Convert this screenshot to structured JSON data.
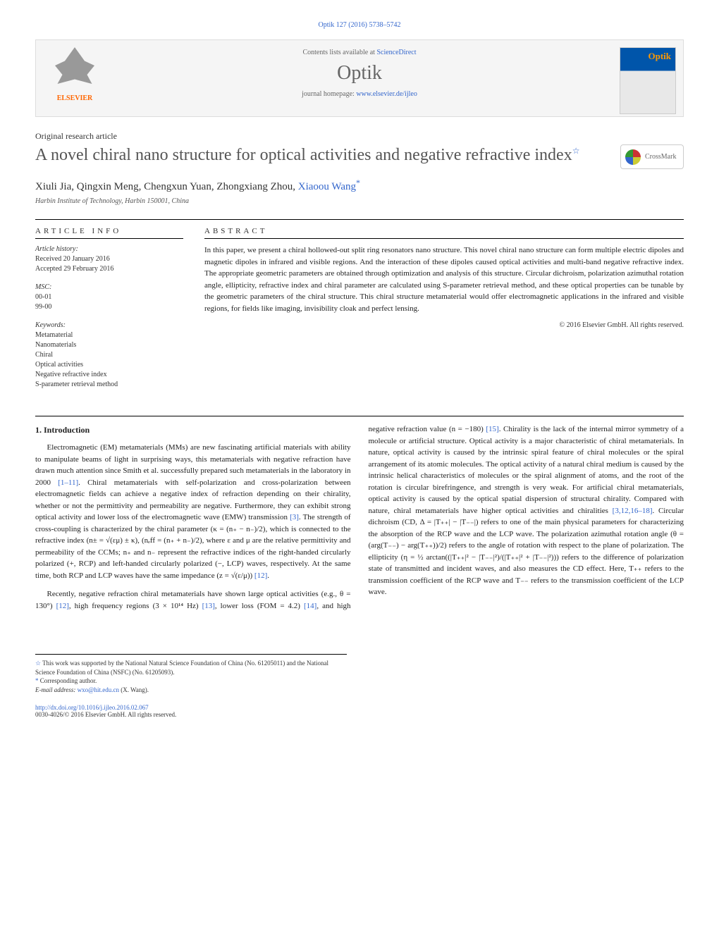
{
  "top_link": "Optik 127 (2016) 5738–5742",
  "header": {
    "contents_prefix": "Contents lists available at ",
    "contents_link": "ScienceDirect",
    "journal_name": "Optik",
    "homepage_prefix": "journal homepage: ",
    "homepage_url": "www.elsevier.de/ijleo",
    "elsevier_label": "ELSEVIER",
    "cover_title": "Optik"
  },
  "article": {
    "type": "Original research article",
    "title": "A novel chiral nano structure for optical activities and negative refractive index",
    "title_star": "☆",
    "crossmark": "CrossMark",
    "authors_raw": "Xiuli Jia, Qingxin Meng, Chengxun Yuan, Zhongxiang Zhou, ",
    "author_corresponding": "Xiaoou Wang",
    "author_star": "*",
    "affiliation": "Harbin Institute of Technology, Harbin 150001, China"
  },
  "info": {
    "heading": "ARTICLE INFO",
    "history_label": "Article history:",
    "history_received": "Received 20 January 2016",
    "history_accepted": "Accepted 29 February 2016",
    "msc_label": "MSC:",
    "msc_items": "00-01\n99-00",
    "keywords_label": "Keywords:",
    "keywords_items": "Metamaterial\nNanomaterials\nChiral\nOptical activities\nNegative refractive index\nS-parameter retrieval method"
  },
  "abstract": {
    "heading": "ABSTRACT",
    "text": "In this paper, we present a chiral hollowed-out split ring resonators nano structure. This novel chiral nano structure can form multiple electric dipoles and magnetic dipoles in infrared and visible regions. And the interaction of these dipoles caused optical activities and multi-band negative refractive index. The appropriate geometric parameters are obtained through optimization and analysis of this structure. Circular dichroism, polarization azimuthal rotation angle, ellipticity, refractive index and chiral parameter are calculated using S-parameter retrieval method, and these optical properties can be tunable by the geometric parameters of the chiral structure. This chiral structure metamaterial would offer electromagnetic applications in the infrared and visible regions, for fields like imaging, invisibility cloak and perfect lensing.",
    "copyright": "© 2016 Elsevier GmbH. All rights reserved."
  },
  "body": {
    "heading": "1. Introduction",
    "para1_a": "Electromagnetic (EM) metamaterials (MMs) are new fascinating artificial materials with ability to manipulate beams of light in surprising ways, this metamaterials with negative refraction have drawn much attention since Smith et al. successfully prepared such metamaterials in the laboratory in 2000 ",
    "para1_ref1": "[1–11]",
    "para1_b": ". Chiral metamaterials with self-polarization and cross-polarization between electromagnetic fields can achieve a negative index of refraction depending on their chirality, whether or not the permittivity and permeability are negative. Furthermore, they can exhibit strong optical activity and lower loss of the electromagnetic wave (EMW) transmission ",
    "para1_ref2": "[3]",
    "para1_c": ". The strength of cross-coupling is characterized by the chiral parameter (κ = (n₊ − n₋)/2), which is connected to the refractive index (n± = √(εμ) ± κ), (nₑff = (n₊ + n₋)/2), where ε and μ are the relative permittivity and permeability of the CCMs; n₊ and n₋ represent the refractive indices of the right-handed circularly polarized (+, RCP) and left-handed circularly polarized (−, LCP) waves, respectively. At the same time, both RCP and LCP waves have the same impedance (z = √(ε/μ)) ",
    "para1_ref3": "[12]",
    "para1_d": ".",
    "para2_a": "Recently, negative refraction chiral metamaterials have shown large optical activities (e.g., θ = 130°) ",
    "para2_ref1": "[12]",
    "para2_b": ", high frequency regions (3 × 10¹⁴ Hz) ",
    "para2_ref2": "[13]",
    "para2_c": ", lower loss (FOM = 4.2) ",
    "para2_ref3": "[14]",
    "para2_d": ", and high negative refraction value (n = −180) ",
    "para2_ref4": "[15]",
    "para2_e": ". Chirality is the lack of the internal mirror symmetry of a molecule or artificial structure. Optical activity is a major characteristic of chiral metamaterials. In nature, optical activity is caused by the intrinsic spiral feature of chiral molecules or the spiral arrangement of its atomic molecules. The optical activity of a natural chiral medium is caused by the intrinsic helical characteristics of molecules or the spiral alignment of atoms, and the root of the rotation is circular birefringence, and strength is very weak. For artificial chiral metamaterials, optical activity is caused by the optical spatial dispersion of structural chirality. Compared with nature, chiral metamaterials have higher optical activities and chiralities ",
    "para2_ref5": "[3,12,16–18]",
    "para2_f": ". Circular dichroism (CD, Δ = |T₊₊| − |T₋₋|) refers to one of the main physical parameters for characterizing the absorption of the RCP wave and the LCP wave. The polarization azimuthal rotation angle (θ = (arg(T₋₋) − arg(T₊₊))/2) refers to the angle of rotation with respect to the plane of polarization. The ellipticity (η = ½ arctan((|T₊₊|² − |T₋₋|²)/(|T₊₊|² + |T₋₋|²))) refers to the difference of polarization state of transmitted and incident waves, and also measures the CD effect. Here, T₊₊ refers to the transmission coefficient of the RCP wave and T₋₋ refers to the transmission coefficient of the LCP wave."
  },
  "footnotes": {
    "funding_star": "☆",
    "funding_text": " This work was supported by the National Natural Science Foundation of China (No. 61205011) and the National Science Foundation of China (NSFC) (No. 61205093).",
    "corresponding_star": "*",
    "corresponding_text": " Corresponding author.",
    "email_label": "E-mail address: ",
    "email": "wxo@hit.edu.cn",
    "email_suffix": " (X. Wang)."
  },
  "bottom": {
    "doi": "http://dx.doi.org/10.1016/j.ijleo.2016.02.067",
    "issn": "0030-4026/© 2016 Elsevier GmbH. All rights reserved."
  }
}
